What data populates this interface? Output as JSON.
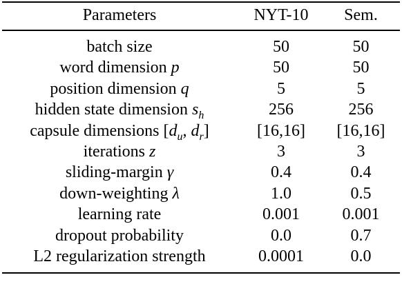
{
  "table": {
    "headers": [
      "Parameters",
      "NYT-10",
      "Sem."
    ],
    "rows": [
      {
        "param": "batch size",
        "sym": "",
        "sub": "",
        "nyt": "50",
        "sem": "50"
      },
      {
        "param": "word dimension",
        "sym": "p",
        "sub": "",
        "nyt": "50",
        "sem": "50"
      },
      {
        "param": "position dimension",
        "sym": "q",
        "sub": "",
        "nyt": "5",
        "sem": "5"
      },
      {
        "param": "hidden state dimension",
        "sym": "s",
        "sub": "h",
        "nyt": "256",
        "sem": "256"
      },
      {
        "param": "capsule dimensions",
        "sym": "",
        "sub": "",
        "nyt": "[16,16]",
        "sem": "[16,16]"
      },
      {
        "param": "iterations",
        "sym": "z",
        "sub": "",
        "nyt": "3",
        "sem": "3"
      },
      {
        "param": "sliding-margin",
        "sym": "γ",
        "sub": "",
        "nyt": "0.4",
        "sem": "0.4"
      },
      {
        "param": "down-weighting",
        "sym": "λ",
        "sub": "",
        "nyt": "1.0",
        "sem": "0.5"
      },
      {
        "param": "learning rate",
        "sym": "",
        "sub": "",
        "nyt": "0.001",
        "sem": "0.001"
      },
      {
        "param": "dropout probability",
        "sym": "",
        "sub": "",
        "nyt": "0.0",
        "sem": "0.7"
      },
      {
        "param": "L2 regularization strength",
        "sym": "",
        "sub": "",
        "nyt": "0.0001",
        "sem": "0.0"
      }
    ],
    "capsule_math": {
      "open": "[",
      "d1": "d",
      "d1_sub": "u",
      "comma": ", ",
      "d2": "d",
      "d2_sub": "r",
      "close": "]"
    }
  }
}
